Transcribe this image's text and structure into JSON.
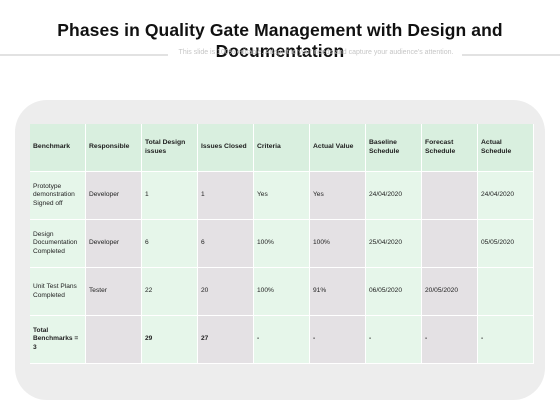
{
  "page": {
    "title": "Phases in Quality Gate Management with Design and Documentation",
    "subtitle": "This slide is 100% editable. Adapt it to your needs and capture your audience's attention."
  },
  "table": {
    "headers": [
      "Benchmark",
      "Responsible",
      "Total Design issues",
      "Issues Closed",
      "Criteria",
      "Actual Value",
      "Baseline Schedule",
      "Forecast Schedule",
      "Actual Schedule"
    ],
    "rows": [
      [
        "Prototype demonstration Signed off",
        "Developer",
        "1",
        "1",
        "Yes",
        "Yes",
        "24/04/2020",
        "",
        "24/04/2020"
      ],
      [
        "Design Documentation Completed",
        "Developer",
        "6",
        "6",
        "100%",
        "100%",
        "25/04/2020",
        "",
        "05/05/2020"
      ],
      [
        "Unit Test Plans Completed",
        "Tester",
        "22",
        "20",
        "100%",
        "91%",
        "06/05/2020",
        "20/05/2020",
        ""
      ],
      [
        "Total Benchmarks = 3",
        "",
        "29",
        "27",
        "-",
        "-",
        "-",
        "-",
        "-"
      ]
    ]
  },
  "colors": {
    "header_bg": "#d9efdf",
    "light_green": "#e6f6ea",
    "grey_column": "#e4e1e4",
    "card_bg": "#ededed"
  }
}
